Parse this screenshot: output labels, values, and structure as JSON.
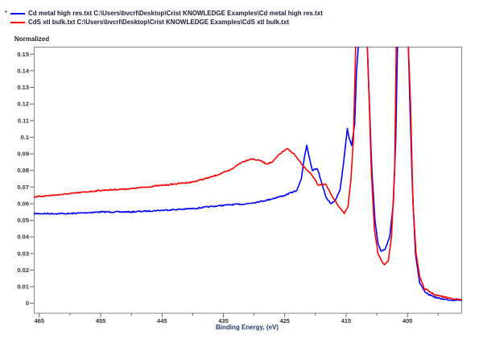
{
  "chart_data": {
    "type": "line",
    "title": "",
    "xlabel": "Binding Energy, (eV)",
    "ylabel": "Normalized",
    "xlim": [
      465.9,
      396.1
    ],
    "ylim": [
      -0.006,
      0.1545
    ],
    "x_reversed": true,
    "x_ticks": [
      "465",
      "455",
      "445",
      "435",
      "425",
      "415",
      "405"
    ],
    "x_tick_values": [
      465,
      455,
      445,
      435,
      425,
      415,
      405
    ],
    "x_minor_ticks": [
      460,
      450,
      440,
      430,
      420,
      410,
      400
    ],
    "y_ticks": [
      "0.15",
      "0.14",
      "0.13",
      "0.12",
      "0.11",
      "0.1",
      "0.09",
      "0.08",
      "0.07",
      "0.06",
      "0.05",
      "0.04",
      "0.03",
      "0.02",
      "0.01",
      "0"
    ],
    "y_tick_values": [
      0.15,
      0.14,
      0.13,
      0.12,
      0.11,
      0.1,
      0.09,
      0.08,
      0.07,
      0.06,
      0.05,
      0.04,
      0.03,
      0.02,
      0.01,
      0
    ],
    "grid": false,
    "legend_position": "top-left",
    "series": [
      {
        "name": "Cd metal high res.txt C:\\Users\\bvcrl\\Desktop\\Crist KNOWLEDGE Examples\\Cd metal high res.txt",
        "color": "#0000ff",
        "points": [
          [
            465.9,
            0.054
          ],
          [
            460,
            0.054
          ],
          [
            455,
            0.055
          ],
          [
            450,
            0.055
          ],
          [
            445,
            0.056
          ],
          [
            440,
            0.057
          ],
          [
            435,
            0.059
          ],
          [
            431,
            0.06
          ],
          [
            428,
            0.062
          ],
          [
            425,
            0.065
          ],
          [
            423,
            0.068
          ],
          [
            422.3,
            0.075
          ],
          [
            421.8,
            0.088
          ],
          [
            421.4,
            0.095
          ],
          [
            421,
            0.088
          ],
          [
            420.5,
            0.08
          ],
          [
            419.7,
            0.081
          ],
          [
            419,
            0.073
          ],
          [
            418.3,
            0.064
          ],
          [
            417.5,
            0.06
          ],
          [
            416.8,
            0.062
          ],
          [
            416,
            0.068
          ],
          [
            415.4,
            0.085
          ],
          [
            414.8,
            0.105
          ],
          [
            414.4,
            0.098
          ],
          [
            414.1,
            0.095
          ],
          [
            413.6,
            0.108
          ],
          [
            413.3,
            0.14
          ],
          [
            412.9,
            0.16
          ],
          [
            411.6,
            0.16
          ],
          [
            411.2,
            0.12
          ],
          [
            410.8,
            0.08
          ],
          [
            410.3,
            0.05
          ],
          [
            409.8,
            0.036
          ],
          [
            409.3,
            0.031
          ],
          [
            408.6,
            0.033
          ],
          [
            407.9,
            0.04
          ],
          [
            407.3,
            0.06
          ],
          [
            406.9,
            0.1
          ],
          [
            406.6,
            0.16
          ],
          [
            404.9,
            0.16
          ],
          [
            404.6,
            0.12
          ],
          [
            404.2,
            0.07
          ],
          [
            403.7,
            0.03
          ],
          [
            403,
            0.012
          ],
          [
            402,
            0.006
          ],
          [
            400,
            0.003
          ],
          [
            398,
            0.002
          ],
          [
            396.1,
            0.002
          ]
        ]
      },
      {
        "name": "CdS xtl bulk.txt C:\\Users\\bvcrl\\Desktop\\Crist KNOWLEDGE Examples\\CdS xtl bulk.txt",
        "color": "#ff0000",
        "points": [
          [
            465.9,
            0.064
          ],
          [
            460,
            0.066
          ],
          [
            455,
            0.068
          ],
          [
            450,
            0.069
          ],
          [
            445,
            0.071
          ],
          [
            440,
            0.073
          ],
          [
            437,
            0.076
          ],
          [
            434,
            0.08
          ],
          [
            432,
            0.085
          ],
          [
            430.5,
            0.087
          ],
          [
            429,
            0.086
          ],
          [
            428,
            0.084
          ],
          [
            427,
            0.085
          ],
          [
            425.8,
            0.09
          ],
          [
            424.6,
            0.093
          ],
          [
            423.5,
            0.09
          ],
          [
            422.5,
            0.085
          ],
          [
            421.9,
            0.082
          ],
          [
            421,
            0.079
          ],
          [
            420.2,
            0.075
          ],
          [
            419.5,
            0.071
          ],
          [
            418.4,
            0.072
          ],
          [
            417.5,
            0.066
          ],
          [
            416.5,
            0.06
          ],
          [
            415.3,
            0.054
          ],
          [
            414.7,
            0.058
          ],
          [
            414.2,
            0.075
          ],
          [
            413.8,
            0.1
          ],
          [
            413.4,
            0.16
          ],
          [
            411.6,
            0.16
          ],
          [
            411.3,
            0.13
          ],
          [
            410.9,
            0.08
          ],
          [
            410.4,
            0.045
          ],
          [
            409.8,
            0.03
          ],
          [
            409.2,
            0.025
          ],
          [
            408.7,
            0.023
          ],
          [
            408.1,
            0.026
          ],
          [
            407.6,
            0.04
          ],
          [
            407.1,
            0.08
          ],
          [
            406.8,
            0.16
          ],
          [
            404.9,
            0.16
          ],
          [
            404.5,
            0.12
          ],
          [
            404.1,
            0.06
          ],
          [
            403.6,
            0.03
          ],
          [
            403,
            0.016
          ],
          [
            402.3,
            0.009
          ],
          [
            400.5,
            0.005
          ],
          [
            398,
            0.003
          ],
          [
            396.1,
            0.002
          ]
        ]
      }
    ]
  }
}
